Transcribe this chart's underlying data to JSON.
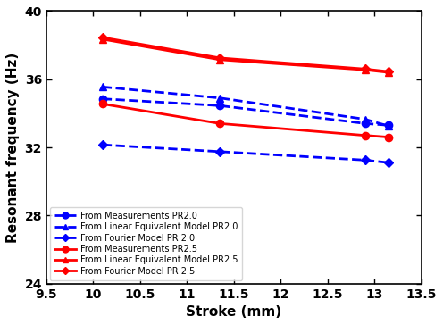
{
  "x": [
    10.1,
    11.35,
    12.9,
    13.15
  ],
  "blue_measurements": [
    34.85,
    34.45,
    33.4,
    33.3
  ],
  "blue_linear": [
    35.55,
    34.9,
    33.65,
    33.25
  ],
  "blue_fourier": [
    32.15,
    31.75,
    31.25,
    31.1
  ],
  "red_measurements": [
    34.55,
    33.4,
    32.7,
    32.6
  ],
  "red_linear": [
    38.35,
    37.15,
    36.55,
    36.4
  ],
  "red_fourier": [
    38.45,
    37.25,
    36.6,
    36.45
  ],
  "blue_color": "#0000FF",
  "red_color": "#FF0000",
  "xlabel": "Stroke (mm)",
  "ylabel": "Resonant frequency (Hz)",
  "xlim": [
    9.5,
    13.5
  ],
  "ylim": [
    24,
    40
  ],
  "xticks": [
    9.5,
    10.0,
    10.5,
    11.0,
    11.5,
    12.0,
    12.5,
    13.0,
    13.5
  ],
  "xticklabels": [
    "9.5",
    "10",
    "10.5",
    "11",
    "11.5",
    "12",
    "12.5",
    "13",
    "13.5"
  ],
  "yticks": [
    24,
    28,
    32,
    36,
    40
  ],
  "legend_labels": [
    "From Measurements PR2.0",
    "From Linear Equivalent Model PR2.0",
    "From Fourier Model PR 2.0",
    "From Measurements PR2.5",
    "From Linear Equivalent Model PR2.5",
    "From Fourier Model PR 2.5"
  ],
  "line_width": 2.0,
  "marker_size_circle": 6,
  "marker_size_triangle": 6,
  "marker_size_diamond": 5,
  "legend_fontsize": 7.0,
  "axis_label_fontsize": 11,
  "tick_fontsize": 10
}
